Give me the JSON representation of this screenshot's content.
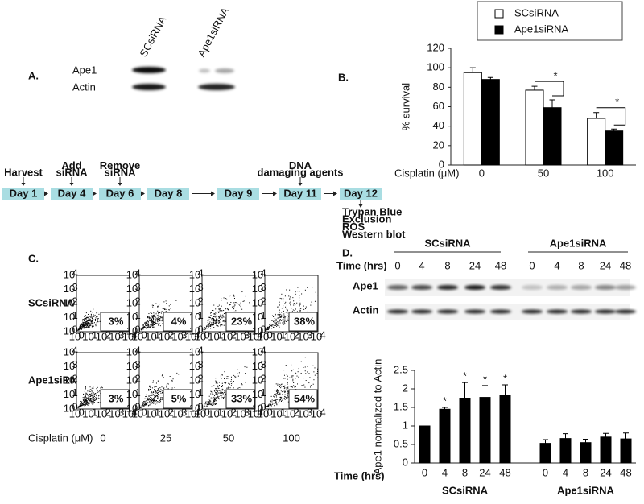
{
  "panel_a": {
    "label": "A.",
    "lanes": [
      "SCsiRNA",
      "Ape1siRNA"
    ],
    "rows": [
      "Ape1",
      "Actin"
    ]
  },
  "timeline": {
    "steps": [
      {
        "day": "Day 1",
        "above": [
          "Harvest"
        ],
        "color": "#111111"
      },
      {
        "day": "Day 4",
        "above": [
          "Add",
          "siRNA"
        ],
        "color": "#d22b1f"
      },
      {
        "day": "Day 6",
        "above": [
          "Remove",
          "siRNA"
        ],
        "color": "#d22b1f"
      },
      {
        "day": "Day 8"
      },
      {
        "day": "Day 9"
      },
      {
        "day": "Day 11",
        "above": [
          "DNA",
          "damaging agents"
        ],
        "color": "#2b3d9e"
      },
      {
        "day": "Day 12",
        "below": [
          "Trypan Blue",
          "Exclusion",
          "ROS",
          "Western blot"
        ],
        "color": "#2b3d9e"
      }
    ]
  },
  "panel_c": {
    "label": "C.",
    "row_labels": [
      "SCsiRNA",
      "Ape1siRNA"
    ],
    "percents": [
      [
        "3%",
        "4%",
        "23%",
        "38%"
      ],
      [
        "3%",
        "5%",
        "33%",
        "54%"
      ]
    ],
    "x_label": "Cisplatin (μM)",
    "doses": [
      "0",
      "25",
      "50",
      "100"
    ],
    "tick_base": "10",
    "tick_exponents": [
      "0",
      "1",
      "2",
      "3",
      "4"
    ]
  },
  "panel_d_blot": {
    "label": "D.",
    "time_label": "Time (hrs)",
    "groups": [
      "SCsiRNA",
      "Ape1siRNA"
    ],
    "times": [
      "0",
      "4",
      "8",
      "24",
      "48"
    ],
    "rows": [
      "Ape1",
      "Actin"
    ]
  },
  "chart_data": [
    {
      "type": "bar",
      "panel_label": "B.",
      "y_label": "% survival",
      "x_label": "Cisplatin (μM)",
      "categories": [
        "0",
        "50",
        "100"
      ],
      "series": [
        {
          "name": "SCsiRNA",
          "color": "#ffffff",
          "values": [
            95,
            77,
            48
          ],
          "errors": [
            5,
            4,
            6
          ]
        },
        {
          "name": "Ape1siRNA",
          "color": "#000000",
          "values": [
            88,
            59,
            35
          ],
          "errors": [
            2,
            8,
            2
          ]
        }
      ],
      "significance": [
        null,
        "*",
        "*"
      ],
      "ylim": [
        0,
        120
      ],
      "yticks": [
        0,
        20,
        40,
        60,
        80,
        100,
        120
      ],
      "legend": "top-right"
    },
    {
      "type": "bar",
      "y_label": "Ape1 normalized to Actin",
      "x_label": "Time (hrs)",
      "categories": [
        "0",
        "4",
        "8",
        "24",
        "48",
        "0",
        "4",
        "8",
        "24",
        "48"
      ],
      "groups": [
        "SCsiRNA",
        "Ape1siRNA"
      ],
      "values": [
        1.0,
        1.45,
        1.75,
        1.77,
        1.83,
        0.53,
        0.66,
        0.55,
        0.7,
        0.65
      ],
      "errors": [
        0,
        0.05,
        0.42,
        0.32,
        0.28,
        0.1,
        0.13,
        0.09,
        0.1,
        0.16
      ],
      "color": "#000000",
      "significance": [
        null,
        "*",
        "*",
        "*",
        "*",
        null,
        null,
        null,
        null,
        null
      ],
      "ylim": [
        0,
        2.5
      ],
      "yticks": [
        0,
        0.5,
        1,
        1.5,
        2,
        2.5
      ]
    }
  ]
}
